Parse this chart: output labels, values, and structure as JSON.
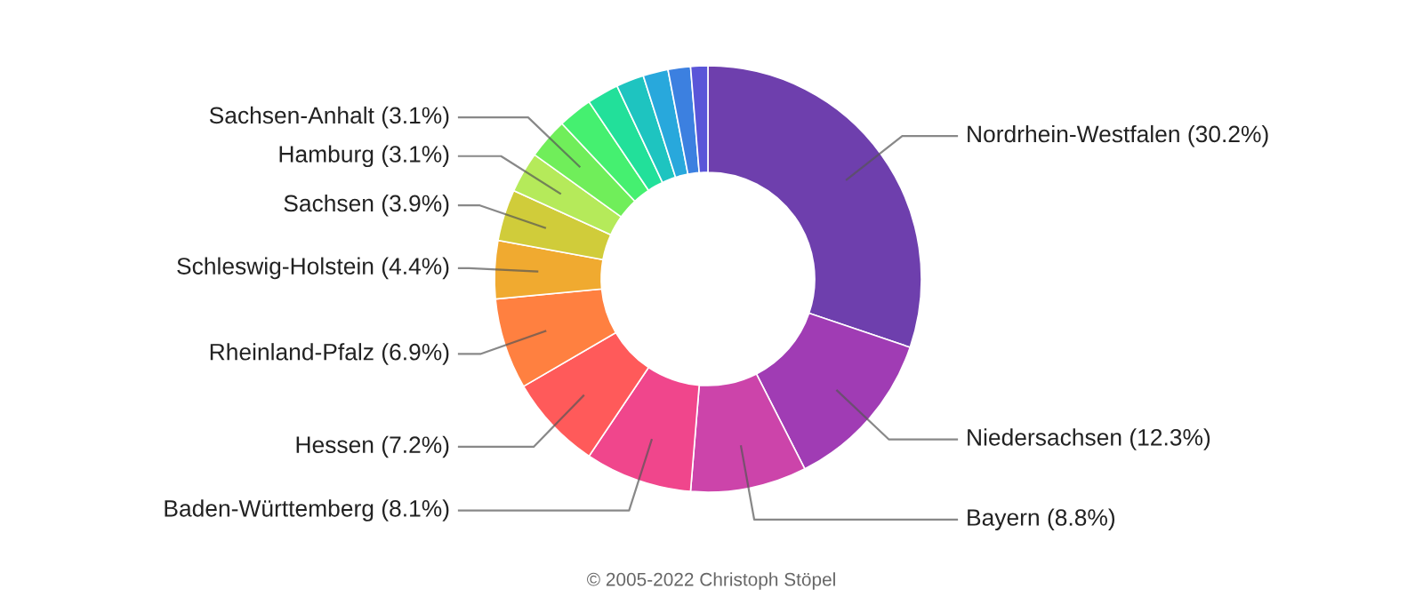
{
  "chart_data": {
    "type": "donut",
    "categories": [
      "Nordrhein-Westfalen",
      "Niedersachsen",
      "Bayern",
      "Baden-Württemberg",
      "Hessen",
      "Rheinland-Pfalz",
      "Schleswig-Holstein",
      "Sachsen",
      "Hamburg",
      "Sachsen-Anhalt",
      null,
      null,
      null,
      null,
      null,
      null
    ],
    "values": [
      30.2,
      12.3,
      8.8,
      8.1,
      7.2,
      6.9,
      4.4,
      3.9,
      3.1,
      3.1,
      2.6,
      2.4,
      2.1,
      1.9,
      1.7,
      1.3
    ],
    "value_labels": [
      "(30.2%)",
      "(12.3%)",
      "(8.8%)",
      "(8.1%)",
      "(7.2%)",
      "(6.9%)",
      "(4.4%)",
      "(3.9%)",
      "(3.1%)",
      "(3.1%)",
      null,
      null,
      null,
      null,
      null,
      null
    ],
    "colors": [
      "#6e3fad",
      "#a03cb4",
      "#cc44aa",
      "#f0468c",
      "#ff5a5a",
      "#ff8040",
      "#f0aa30",
      "#d0cc3a",
      "#b5ea5a",
      "#70ee5a",
      "#45f070",
      "#22e09a",
      "#1ec4c0",
      "#28a8dc",
      "#3c80e0",
      "#5a55d8"
    ],
    "annotations": [
      "© 2005-2022 Christoph Stöpel"
    ]
  }
}
